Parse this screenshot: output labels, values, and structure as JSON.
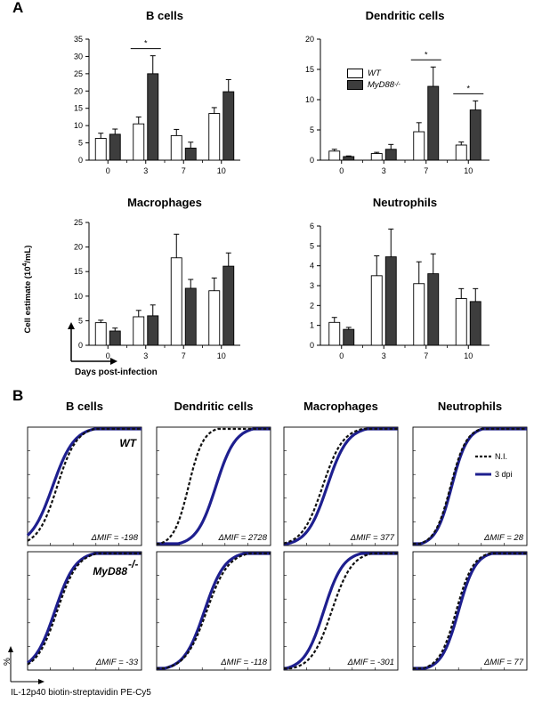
{
  "panel_a": {
    "letter": "A",
    "ylabel_main": "Cell estimate (10",
    "ylabel_sup": "4",
    "ylabel_tail": "/mL)",
    "xaxis_note": "Days post-infection"
  },
  "panel_b": {
    "letter": "B",
    "percent_label": "%",
    "xlabel": "IL-12p40 biotin-streptavidin PE-Cy5",
    "columns": [
      "B cells",
      "Dendritic cells",
      "Macrophages",
      "Neutrophils"
    ],
    "row_labels": [
      {
        "text": "WT",
        "sup": ""
      },
      {
        "text": "MyD88",
        "sup": "-/-"
      }
    ],
    "legend": [
      {
        "name": "N.I.",
        "color": "#111111",
        "dashed": true
      },
      {
        "name": "3 dpi",
        "color": "#1e1f8f",
        "dashed": false
      }
    ],
    "dmif_prefix": "ΔMIF = ",
    "dmif_values": [
      [
        "-198",
        "2728",
        "377",
        "28"
      ],
      [
        "-33",
        "-118",
        "-301",
        "77"
      ]
    ]
  },
  "legend_a": {
    "wt": {
      "text": "WT",
      "sup": ""
    },
    "myd": {
      "text": "MyD88",
      "sup": "-/-"
    }
  },
  "colors": {
    "wt_fill": "#ffffff",
    "myd_fill": "#3d3d3d",
    "curve_3dpi": "#1e1f8f",
    "curve_ni": "#111111"
  },
  "chart_data": [
    {
      "type": "bar",
      "title": "B cells",
      "categories": [
        "0",
        "3",
        "7",
        "10"
      ],
      "ylim": [
        0,
        35
      ],
      "yticks": [
        0,
        5,
        10,
        15,
        20,
        25,
        30,
        35
      ],
      "series": [
        {
          "name": "WT",
          "values": [
            6.3,
            10.5,
            7.1,
            13.5
          ],
          "errors": [
            1.5,
            2.0,
            1.8,
            1.7
          ]
        },
        {
          "name": "MyD88-/-",
          "values": [
            7.5,
            25.0,
            3.5,
            19.8
          ],
          "errors": [
            1.5,
            5.2,
            1.7,
            3.5
          ]
        }
      ],
      "significance": [
        {
          "category": "3",
          "label": "*"
        }
      ]
    },
    {
      "type": "bar",
      "title": "Dendritic cells",
      "categories": [
        "0",
        "3",
        "7",
        "10"
      ],
      "ylim": [
        0,
        20
      ],
      "yticks": [
        0,
        5,
        10,
        15,
        20
      ],
      "series": [
        {
          "name": "WT",
          "values": [
            1.5,
            1.1,
            4.7,
            2.5
          ],
          "errors": [
            0.3,
            0.2,
            1.5,
            0.5
          ]
        },
        {
          "name": "MyD88-/-",
          "values": [
            0.6,
            1.8,
            12.2,
            8.3
          ],
          "errors": [
            0.1,
            0.8,
            3.2,
            1.5
          ]
        }
      ],
      "significance": [
        {
          "category": "7",
          "label": "*"
        },
        {
          "category": "10",
          "label": "*"
        }
      ]
    },
    {
      "type": "bar",
      "title": "Macrophages",
      "categories": [
        "0",
        "3",
        "7",
        "10"
      ],
      "ylim": [
        0,
        25
      ],
      "yticks": [
        0,
        5,
        10,
        15,
        20,
        25
      ],
      "series": [
        {
          "name": "WT",
          "values": [
            4.6,
            5.8,
            17.8,
            11.1
          ],
          "errors": [
            0.5,
            1.3,
            4.8,
            2.6
          ]
        },
        {
          "name": "MyD88-/-",
          "values": [
            2.9,
            6.0,
            11.6,
            16.1
          ],
          "errors": [
            0.6,
            2.2,
            1.8,
            2.7
          ]
        }
      ],
      "significance": []
    },
    {
      "type": "bar",
      "title": "Neutrophils",
      "categories": [
        "0",
        "3",
        "7",
        "10"
      ],
      "ylim": [
        0,
        6
      ],
      "yticks": [
        0,
        1,
        2,
        3,
        4,
        5,
        6
      ],
      "series": [
        {
          "name": "WT",
          "values": [
            1.15,
            3.5,
            3.1,
            2.35
          ],
          "errors": [
            0.25,
            1.0,
            1.1,
            0.5
          ]
        },
        {
          "name": "MyD88-/-",
          "values": [
            0.8,
            4.45,
            3.6,
            2.2
          ],
          "errors": [
            0.1,
            1.4,
            1.0,
            0.65
          ]
        }
      ],
      "significance": []
    }
  ]
}
